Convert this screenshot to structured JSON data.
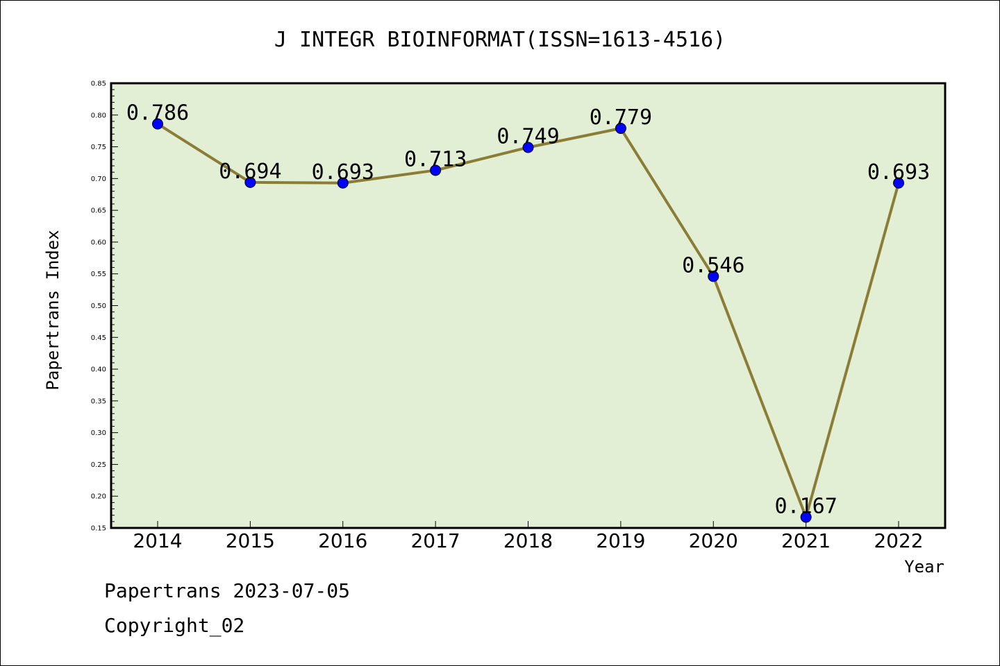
{
  "chart_data": {
    "type": "line",
    "title": "J INTEGR BIOINFORMAT(ISSN=1613-4516)",
    "xlabel": "Year",
    "ylabel": "Papertrans Index",
    "categories": [
      "2014",
      "2015",
      "2016",
      "2017",
      "2018",
      "2019",
      "2020",
      "2021",
      "2022"
    ],
    "values": [
      0.786,
      0.694,
      0.693,
      0.713,
      0.749,
      0.779,
      0.546,
      0.167,
      0.693
    ],
    "data_labels": [
      "0.786",
      "0.694",
      "0.693",
      "0.713",
      "0.749",
      "0.779",
      "0.546",
      "0.167",
      "0.693"
    ],
    "ylim": [
      0.15,
      0.85
    ],
    "yticks": [
      "0.15",
      "0.20",
      "0.25",
      "0.30",
      "0.35",
      "0.40",
      "0.45",
      "0.50",
      "0.55",
      "0.60",
      "0.65",
      "0.70",
      "0.75",
      "0.80",
      "0.85"
    ],
    "grid": false,
    "colors": {
      "plot_background": "#e2efd5",
      "line": "#8b7d35",
      "marker": "#0000ff"
    }
  },
  "footer": {
    "date_line": "Papertrans 2023-07-05",
    "copyright": "Copyright_02"
  }
}
